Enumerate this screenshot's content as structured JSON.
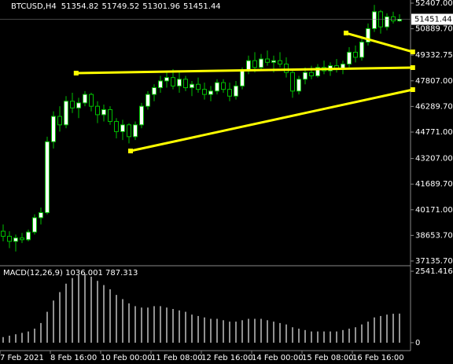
{
  "chart_data": [
    {
      "type": "candlestick",
      "title": "BTCUSD,H4",
      "categories": [
        "7 Feb 2021",
        null,
        null,
        null,
        null,
        null,
        null,
        null,
        "8 Feb 16:00",
        null,
        null,
        null,
        null,
        null,
        null,
        null,
        "10 Feb 00:00",
        null,
        null,
        null,
        null,
        null,
        null,
        null,
        "11 Feb 08:00",
        null,
        null,
        null,
        null,
        null,
        null,
        null,
        "12 Feb 16:00",
        null,
        null,
        null,
        null,
        null,
        null,
        null,
        "14 Feb 00:00",
        null,
        null,
        null,
        null,
        null,
        null,
        null,
        "15 Feb 08:00",
        null,
        null,
        null,
        null,
        null,
        null,
        null,
        "16 Feb 16:00",
        null,
        null,
        null,
        null,
        null,
        null,
        null
      ],
      "open": [
        38900,
        38600,
        38300,
        38500,
        38400,
        38850,
        39700,
        40000,
        44200,
        45700,
        45200,
        46600,
        46200,
        46500,
        47000,
        46300,
        45800,
        46100,
        45400,
        44800,
        45200,
        44500,
        45200,
        46300,
        47000,
        47400,
        47800,
        48000,
        47500,
        47900,
        47400,
        47600,
        47300,
        47000,
        47200,
        47700,
        47300,
        46900,
        47500,
        48400,
        49000,
        48600,
        49100,
        48900,
        49000,
        48800,
        48300,
        47200,
        47900,
        48300,
        48100,
        48600,
        48400,
        48700,
        48500,
        48800,
        49500,
        49200,
        50100,
        50900,
        51900,
        51000,
        51600,
        51354.82
      ],
      "high": [
        39300,
        38900,
        38700,
        38800,
        39000,
        39900,
        40300,
        44500,
        46000,
        46300,
        46900,
        47100,
        46800,
        47200,
        47100,
        46600,
        46400,
        46300,
        45600,
        45500,
        45300,
        45400,
        46500,
        47200,
        47600,
        48100,
        48400,
        48500,
        48300,
        48100,
        47800,
        48000,
        47700,
        47500,
        47900,
        47900,
        47700,
        47800,
        48600,
        49300,
        49500,
        49400,
        49600,
        49300,
        49500,
        49200,
        48500,
        48100,
        48600,
        48700,
        48800,
        49000,
        48900,
        49100,
        49000,
        49800,
        49900,
        50300,
        51200,
        52300,
        52000,
        51800,
        51900,
        51749.52
      ],
      "low": [
        38300,
        37900,
        37700,
        38200,
        38300,
        38700,
        39300,
        39900,
        43800,
        44800,
        45000,
        45900,
        45600,
        46300,
        46000,
        45300,
        45400,
        45200,
        44400,
        44300,
        44100,
        44300,
        45000,
        46100,
        46600,
        47100,
        47400,
        47300,
        47100,
        47200,
        46900,
        47100,
        46700,
        46600,
        47000,
        47100,
        46600,
        46700,
        47300,
        48200,
        48300,
        48400,
        48700,
        48300,
        48600,
        48000,
        46800,
        47000,
        47600,
        47900,
        48000,
        48200,
        48100,
        48300,
        48200,
        48600,
        48900,
        49000,
        49900,
        50700,
        50600,
        50800,
        51200,
        51301.96
      ],
      "close": [
        38600,
        38300,
        38500,
        38400,
        38850,
        39700,
        40000,
        44200,
        45700,
        45200,
        46600,
        46200,
        46500,
        47000,
        46300,
        45800,
        46100,
        45400,
        44800,
        45200,
        44500,
        45200,
        46300,
        47000,
        47400,
        47800,
        48000,
        47500,
        47900,
        47400,
        47600,
        47300,
        47000,
        47200,
        47700,
        47300,
        46900,
        47500,
        48400,
        49000,
        48600,
        49100,
        48900,
        49000,
        48800,
        48300,
        47200,
        47900,
        48300,
        48100,
        48600,
        48400,
        48700,
        48500,
        48800,
        49500,
        49200,
        50100,
        50900,
        51900,
        51000,
        51600,
        51354.82,
        51451.44
      ],
      "ylim": [
        36856,
        52593
      ],
      "yticks": [
        {
          "value": 52407,
          "label": "52407.00"
        },
        {
          "value": 50889.7,
          "label": "50889.70"
        },
        {
          "value": 49332.75,
          "label": "49332.75"
        },
        {
          "value": 47807,
          "label": "47807.00"
        },
        {
          "value": 46289.7,
          "label": "46289.70"
        },
        {
          "value": 44771,
          "label": "44771.00"
        },
        {
          "value": 43207,
          "label": "43207.00"
        },
        {
          "value": 41689.7,
          "label": "41689.70"
        },
        {
          "value": 40171,
          "label": "40171.00"
        },
        {
          "value": 38653.7,
          "label": "38653.70"
        },
        {
          "value": 37135.7,
          "label": "37135.70"
        }
      ],
      "trendlines": [
        {
          "x": [
            20.25,
            65.1
          ],
          "y": [
            43653,
            47285
          ]
        },
        {
          "x": [
            11.6,
            65.1
          ],
          "y": [
            48263,
            48589
          ]
        },
        {
          "x": [
            54.5,
            65.1
          ],
          "y": [
            50637,
            49520
          ]
        }
      ],
      "up_color": "#ffffff",
      "down_color": "#000000",
      "candle_stroke": "#00c000",
      "trend_color": "#ffff00"
    },
    {
      "type": "bar",
      "title": "MACD(12,26,9) 1036.001 787.313",
      "values": [
        200,
        250,
        300,
        350,
        400,
        500,
        700,
        1100,
        1500,
        1800,
        2100,
        2300,
        2400,
        2450,
        2350,
        2200,
        2050,
        1900,
        1700,
        1550,
        1400,
        1300,
        1250,
        1250,
        1300,
        1300,
        1250,
        1200,
        1150,
        1100,
        1000,
        950,
        900,
        850,
        850,
        800,
        750,
        750,
        800,
        850,
        850,
        850,
        800,
        750,
        700,
        650,
        550,
        500,
        450,
        400,
        400,
        400,
        400,
        400,
        450,
        500,
        550,
        650,
        750,
        900,
        950,
        1000,
        1030,
        1036.001
      ],
      "ylim": [
        -282,
        2682
      ],
      "yticks": [
        2541.416,
        0
      ],
      "color": "#c0c0c0"
    }
  ]
}
